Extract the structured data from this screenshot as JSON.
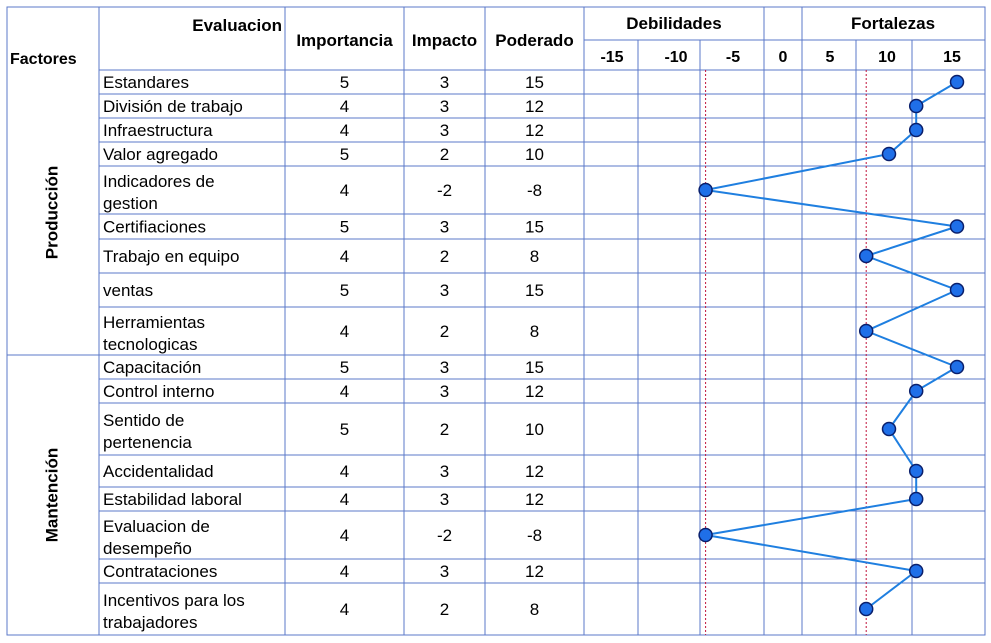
{
  "table": {
    "evaluacion_label": "Evaluacion",
    "factores_label": "Factores",
    "columns": [
      "Importancia",
      "Impacto",
      "Poderado"
    ],
    "debilidades_label": "Debilidades",
    "fortalezas_label": "Fortalezas"
  },
  "colors": {
    "grid": "#5b79c9",
    "line": "#1f7fe0",
    "marker_fill": "#1f6fe8",
    "marker_stroke": "#0a1f6b",
    "reference": "#c0143c"
  },
  "chart_data": {
    "type": "line",
    "xlim": [
      -15,
      15
    ],
    "xticks": [
      "-15",
      "-10",
      "-5",
      "0",
      "5",
      "10",
      "15"
    ],
    "reference_lines": [
      -8,
      8
    ],
    "groups": [
      {
        "name": "Producción",
        "rows": [
          {
            "factor": "Estandares",
            "importancia": "5",
            "impacto": "3",
            "poderado": "15",
            "value": 15
          },
          {
            "factor": "División de trabajo",
            "importancia": "4",
            "impacto": "3",
            "poderado": "12",
            "value": 12
          },
          {
            "factor": "Infraestructura",
            "importancia": "4",
            "impacto": "3",
            "poderado": "12",
            "value": 12
          },
          {
            "factor": "Valor agregado",
            "importancia": "5",
            "impacto": "2",
            "poderado": "10",
            "value": 10
          },
          {
            "factor": "Indicadores de gestion",
            "importancia": "4",
            "impacto": "-2",
            "poderado": "-8",
            "value": -8
          },
          {
            "factor": "Certifiaciones",
            "importancia": "5",
            "impacto": "3",
            "poderado": "15",
            "value": 15
          },
          {
            "factor": "Trabajo en equipo",
            "importancia": "4",
            "impacto": "2",
            "poderado": "8",
            "value": 8
          },
          {
            "factor": "ventas",
            "importancia": "5",
            "impacto": "3",
            "poderado": "15",
            "value": 15
          },
          {
            "factor": "Herramientas tecnologicas",
            "importancia": "4",
            "impacto": "2",
            "poderado": "8",
            "value": 8
          }
        ]
      },
      {
        "name": "Mantención",
        "rows": [
          {
            "factor": "Capacitación",
            "importancia": "5",
            "impacto": "3",
            "poderado": "15",
            "value": 15
          },
          {
            "factor": "Control interno",
            "importancia": "4",
            "impacto": "3",
            "poderado": "12",
            "value": 12
          },
          {
            "factor": "Sentido de pertenencia",
            "importancia": "5",
            "impacto": "2",
            "poderado": "10",
            "value": 10
          },
          {
            "factor": "Accidentalidad",
            "importancia": "4",
            "impacto": "3",
            "poderado": "12",
            "value": 12
          },
          {
            "factor": "Estabilidad laboral",
            "importancia": "4",
            "impacto": "3",
            "poderado": "12",
            "value": 12
          },
          {
            "factor": "Evaluacion de desempeño",
            "importancia": "4",
            "impacto": "-2",
            "poderado": "-8",
            "value": -8
          },
          {
            "factor": "Contrataciones",
            "importancia": "4",
            "impacto": "3",
            "poderado": "12",
            "value": 12
          },
          {
            "factor": "Incentivos para los trabajadores",
            "importancia": "4",
            "impacto": "2",
            "poderado": "8",
            "value": 8
          }
        ]
      }
    ]
  }
}
